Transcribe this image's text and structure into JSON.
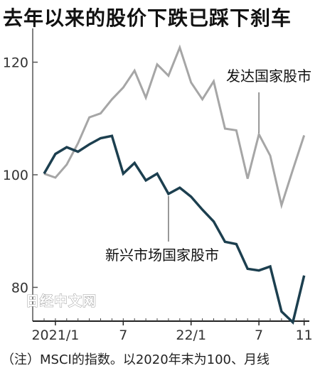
{
  "chart_data": {
    "type": "line",
    "title": "去年以来的股价下跌已踩下刹车",
    "note": "（注）MSCI的指数。以2020年末为100、月线",
    "watermark": "日经中文网",
    "x": [
      "2020-12",
      "2021-01",
      "2021-02",
      "2021-03",
      "2021-04",
      "2021-05",
      "2021-06",
      "2021-07",
      "2021-08",
      "2021-09",
      "2021-10",
      "2021-11",
      "2021-12",
      "2022-01",
      "2022-02",
      "2022-03",
      "2022-04",
      "2022-05",
      "2022-06",
      "2022-07",
      "2022-08",
      "2022-09",
      "2022-10",
      "2022-11"
    ],
    "x_ticks": [
      "2021/1",
      "7",
      "22/1",
      "7",
      "11"
    ],
    "ylim": [
      74,
      126
    ],
    "y_ticks": [
      80,
      100,
      120
    ],
    "grid": false,
    "series": [
      {
        "name": "发达国家股市",
        "color": "#a6a6a6",
        "values": [
          100.2,
          99.5,
          101.8,
          105.6,
          110.2,
          110.9,
          113.4,
          115.5,
          118.5,
          113.7,
          119.6,
          117.6,
          122.6,
          116.4,
          113.4,
          116.6,
          108.2,
          107.9,
          99.3,
          107.2,
          103.4,
          94.6,
          100.9,
          107.0
        ]
      },
      {
        "name": "新兴市场国家股市",
        "color": "#1c3f4f",
        "values": [
          100.2,
          103.7,
          104.9,
          104.1,
          105.4,
          106.5,
          106.9,
          100.2,
          102.1,
          99.0,
          100.2,
          96.6,
          97.7,
          96.1,
          93.8,
          91.7,
          88.1,
          87.7,
          83.3,
          83.0,
          83.7,
          75.7,
          73.8,
          82.1
        ]
      }
    ]
  }
}
